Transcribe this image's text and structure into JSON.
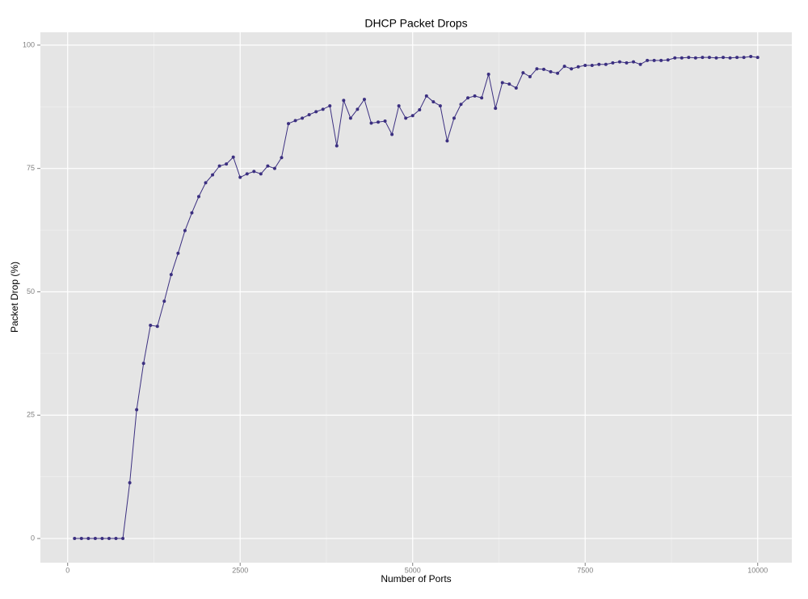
{
  "chart_data": {
    "type": "line",
    "title": "DHCP Packet Drops",
    "x_label": "Number of Ports",
    "y_label": "Packet Drop (%)",
    "x": [
      100,
      200,
      300,
      400,
      500,
      600,
      700,
      800,
      900,
      1000,
      1100,
      1200,
      1300,
      1400,
      1500,
      1600,
      1700,
      1800,
      1900,
      2000,
      2100,
      2200,
      2300,
      2400,
      2500,
      2600,
      2700,
      2800,
      2900,
      3000,
      3100,
      3200,
      3300,
      3400,
      3500,
      3600,
      3700,
      3800,
      3900,
      4000,
      4100,
      4200,
      4300,
      4400,
      4500,
      4600,
      4700,
      4800,
      4900,
      5000,
      5100,
      5200,
      5300,
      5400,
      5500,
      5600,
      5700,
      5800,
      5900,
      6000,
      6100,
      6200,
      6300,
      6400,
      6500,
      6600,
      6700,
      6800,
      6900,
      7000,
      7100,
      7200,
      7300,
      7400,
      7500,
      7600,
      7700,
      7800,
      7900,
      8000,
      8100,
      8200,
      8300,
      8400,
      8500,
      8600,
      8700,
      8800,
      8900,
      9000,
      9100,
      9200,
      9300,
      9400,
      9500,
      9600,
      9700,
      9800,
      9900,
      10000
    ],
    "values": [
      0,
      0,
      0,
      0,
      0,
      0,
      0,
      0,
      11.3,
      26.1,
      35.5,
      43.2,
      43.0,
      48.1,
      53.5,
      57.8,
      62.4,
      66.0,
      69.3,
      72.1,
      73.7,
      75.5,
      75.9,
      77.3,
      73.2,
      73.9,
      74.4,
      73.9,
      75.5,
      75.0,
      77.2,
      84.1,
      84.7,
      85.2,
      85.9,
      86.5,
      87.0,
      87.7,
      79.6,
      88.8,
      85.2,
      87.0,
      89.0,
      84.2,
      84.4,
      84.6,
      81.9,
      87.7,
      85.2,
      85.7,
      86.9,
      89.7,
      88.5,
      87.7,
      80.6,
      85.2,
      88.0,
      89.3,
      89.7,
      89.3,
      94.1,
      87.2,
      92.4,
      92.1,
      91.3,
      94.4,
      93.6,
      95.2,
      95.1,
      94.6,
      94.3,
      95.7,
      95.2,
      95.6,
      95.9,
      95.9,
      96.1,
      96.1,
      96.4,
      96.6,
      96.4,
      96.6,
      96.1,
      96.9,
      96.9,
      96.9,
      97.0,
      97.4,
      97.4,
      97.5,
      97.4,
      97.5,
      97.5,
      97.4,
      97.5,
      97.4,
      97.5,
      97.5,
      97.7,
      97.5
    ],
    "color": "#3b2f80",
    "xlim": [
      -395,
      10495
    ],
    "ylim": [
      -4.9,
      102.6
    ],
    "xticks": [
      0,
      2500,
      5000,
      7500,
      10000
    ],
    "yticks": [
      0,
      25,
      50,
      75,
      100
    ],
    "grid": true
  }
}
